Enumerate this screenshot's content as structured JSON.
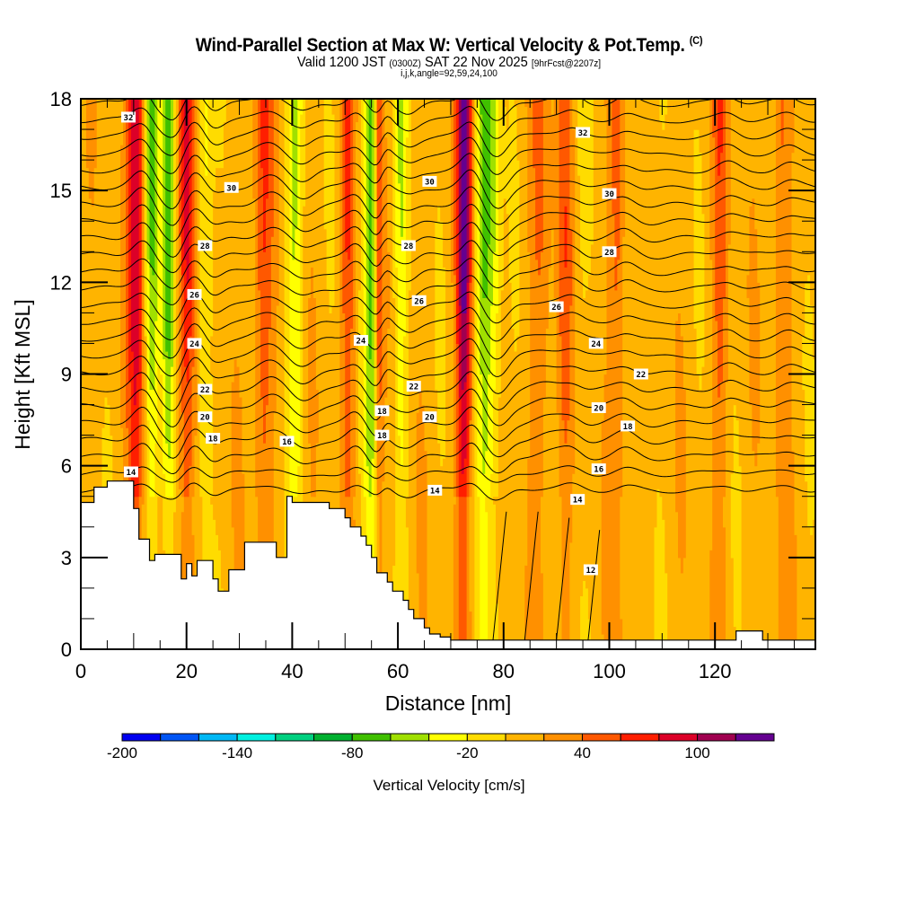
{
  "title": {
    "main": "Wind-Parallel Section at Max W: Vertical Velocity & Pot.Temp.",
    "copyright": "(C)",
    "valid_prefix": "Valid 1200 JST",
    "valid_utc": "(0300Z)",
    "valid_date": "SAT 22 Nov 2025",
    "forecast": "[9hrFcst@2207z]",
    "params": "i,j,k,angle=92,59,24,100"
  },
  "chart_data": {
    "type": "heatmap",
    "title": "Wind-Parallel Section at Max W: Vertical Velocity & Pot.Temp.",
    "xlabel": "Distance [nm]",
    "ylabel": "Height [Kft MSL]",
    "xlim": [
      0,
      139
    ],
    "ylim": [
      0,
      18
    ],
    "x_ticks": [
      "0",
      "20",
      "40",
      "60",
      "80",
      "100",
      "120"
    ],
    "x_tick_values": [
      0,
      20,
      40,
      60,
      80,
      100,
      120
    ],
    "y_ticks": [
      "0",
      "3",
      "6",
      "9",
      "12",
      "15",
      "18"
    ],
    "y_tick_values": [
      0,
      3,
      6,
      9,
      12,
      15,
      18
    ],
    "colorbar": {
      "label": "Vertical Velocity [cm/s]",
      "bounds": [
        -200,
        -180,
        -160,
        -140,
        -120,
        -100,
        -80,
        -60,
        -40,
        -20,
        0,
        20,
        40,
        60,
        80,
        100,
        120,
        140
      ],
      "tick_labels": [
        "-200",
        "-140",
        "-80",
        "-20",
        "40",
        "100"
      ],
      "tick_values": [
        -200,
        -140,
        -80,
        -20,
        40,
        100
      ],
      "colors": [
        "#0000f0",
        "#0055f5",
        "#00b8f5",
        "#00f0e0",
        "#00d080",
        "#00b030",
        "#40c000",
        "#a0e000",
        "#ffff00",
        "#ffdc00",
        "#ffb400",
        "#ff9000",
        "#ff5800",
        "#ff1e00",
        "#dc0028",
        "#a00050",
        "#640090"
      ]
    },
    "background_w": 10,
    "w_features": [
      {
        "x": 10.5,
        "width": 1.6,
        "peak": 90
      },
      {
        "x": 13.5,
        "width": 1.4,
        "peak": -70
      },
      {
        "x": 16.5,
        "width": 1.2,
        "peak": -90
      },
      {
        "x": 20.0,
        "width": 1.5,
        "peak": 80
      },
      {
        "x": 23.5,
        "width": 1.3,
        "peak": -40
      },
      {
        "x": 34.5,
        "width": 1.8,
        "peak": 55
      },
      {
        "x": 40.5,
        "width": 1.6,
        "peak": -50
      },
      {
        "x": 50.5,
        "width": 1.2,
        "peak": 50
      },
      {
        "x": 55.0,
        "width": 1.4,
        "peak": -80
      },
      {
        "x": 56.3,
        "width": 0.8,
        "peak": 70
      },
      {
        "x": 60.5,
        "width": 1.3,
        "peak": -45
      },
      {
        "x": 72.5,
        "width": 1.4,
        "peak": 120
      },
      {
        "x": 76.5,
        "width": 1.5,
        "peak": -80
      },
      {
        "x": 78.5,
        "width": 1.2,
        "peak": -40
      },
      {
        "x": 87.0,
        "width": 2.0,
        "peak": 30
      },
      {
        "x": 91.5,
        "width": 1.5,
        "peak": 40
      },
      {
        "x": 94.5,
        "width": 1.4,
        "peak": -10
      },
      {
        "x": 101.5,
        "width": 1.5,
        "peak": 40
      },
      {
        "x": 107.0,
        "width": 1.8,
        "peak": -10
      },
      {
        "x": 121.0,
        "width": 1.5,
        "peak": 40
      },
      {
        "x": 132.5,
        "width": 1.5,
        "peak": 35
      }
    ],
    "terrain": {
      "x": [
        0,
        2.5,
        2.5,
        5,
        5,
        10,
        10,
        11,
        11,
        13,
        13,
        14,
        14,
        19,
        19,
        20,
        20,
        21,
        21,
        22,
        22,
        25,
        25,
        26,
        26,
        28,
        28,
        31,
        31,
        37,
        37,
        39,
        39,
        40,
        40,
        47,
        47,
        50,
        50,
        51,
        51,
        53,
        53,
        54,
        54,
        55,
        55,
        56,
        56,
        58,
        58,
        59,
        59,
        61,
        61,
        62,
        62,
        63,
        63,
        65,
        65,
        66,
        66,
        68,
        68,
        70,
        70,
        72,
        72,
        124,
        124,
        129,
        129,
        139
      ],
      "y": [
        4.8,
        4.8,
        5.3,
        5.3,
        5.5,
        5.5,
        4.6,
        4.6,
        3.6,
        3.6,
        2.9,
        2.9,
        3.1,
        3.1,
        2.3,
        2.3,
        2.8,
        2.8,
        2.4,
        2.4,
        2.9,
        2.9,
        2.3,
        2.3,
        1.9,
        1.9,
        2.6,
        2.6,
        3.5,
        3.5,
        3.0,
        3.0,
        5.0,
        5.0,
        4.8,
        4.8,
        4.6,
        4.6,
        4.3,
        4.3,
        4.0,
        4.0,
        3.7,
        3.7,
        3.4,
        3.4,
        3.0,
        3.0,
        2.5,
        2.5,
        2.2,
        2.2,
        1.9,
        1.9,
        1.6,
        1.6,
        1.3,
        1.3,
        1.0,
        1.0,
        0.7,
        0.7,
        0.5,
        0.5,
        0.4,
        0.4,
        0.3,
        0.3,
        0.3,
        0.3,
        0.6,
        0.6,
        0.3,
        0.3
      ]
    },
    "isentrope_levels": [
      14,
      16,
      18,
      20,
      22,
      24,
      26,
      28,
      30,
      32
    ],
    "contour_labels": [
      {
        "text": "32",
        "x": 9,
        "y": 17.4
      },
      {
        "text": "30",
        "x": 28.5,
        "y": 15.1
      },
      {
        "text": "28",
        "x": 23.5,
        "y": 13.2
      },
      {
        "text": "26",
        "x": 21.5,
        "y": 11.6
      },
      {
        "text": "24",
        "x": 21.5,
        "y": 10.0
      },
      {
        "text": "22",
        "x": 23.5,
        "y": 8.5
      },
      {
        "text": "20",
        "x": 23.5,
        "y": 7.6
      },
      {
        "text": "18",
        "x": 25,
        "y": 6.9
      },
      {
        "text": "16",
        "x": 39,
        "y": 6.8
      },
      {
        "text": "14",
        "x": 9.5,
        "y": 5.8
      },
      {
        "text": "30",
        "x": 66,
        "y": 15.3
      },
      {
        "text": "28",
        "x": 62,
        "y": 13.2
      },
      {
        "text": "26",
        "x": 64,
        "y": 11.4
      },
      {
        "text": "24",
        "x": 53,
        "y": 10.1
      },
      {
        "text": "22",
        "x": 63,
        "y": 8.6
      },
      {
        "text": "20",
        "x": 66,
        "y": 7.6
      },
      {
        "text": "18",
        "x": 57,
        "y": 7.8
      },
      {
        "text": "18",
        "x": 57,
        "y": 7.0
      },
      {
        "text": "14",
        "x": 67,
        "y": 5.2
      },
      {
        "text": "32",
        "x": 95,
        "y": 16.9
      },
      {
        "text": "30",
        "x": 100,
        "y": 14.9
      },
      {
        "text": "28",
        "x": 100,
        "y": 13.0
      },
      {
        "text": "26",
        "x": 90,
        "y": 11.2
      },
      {
        "text": "24",
        "x": 97.5,
        "y": 10.0
      },
      {
        "text": "22",
        "x": 106,
        "y": 9.0
      },
      {
        "text": "20",
        "x": 98,
        "y": 7.9
      },
      {
        "text": "18",
        "x": 103.5,
        "y": 7.3
      },
      {
        "text": "16",
        "x": 98,
        "y": 5.9
      },
      {
        "text": "14",
        "x": 94,
        "y": 4.9
      },
      {
        "text": "12",
        "x": 96.5,
        "y": 2.6
      }
    ]
  }
}
